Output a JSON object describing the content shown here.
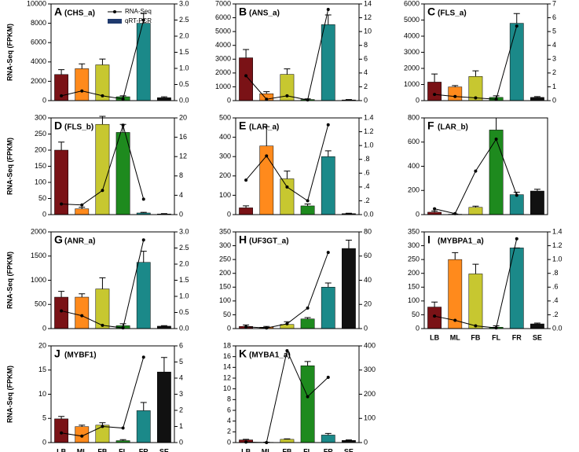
{
  "categories": [
    "LB",
    "ML",
    "FB",
    "FL",
    "FR",
    "SE"
  ],
  "bar_colors": [
    "#7a1216",
    "#ff8a1c",
    "#c7c730",
    "#1e8a1e",
    "#1b8989",
    "#111111"
  ],
  "line_color": "#000000",
  "ylabel": "RNA-Seq (FPKM)",
  "legend": {
    "line": "RNA-Seq",
    "bar": "qRT-PCR",
    "bar_color": "#1f3a6e"
  },
  "chart_data": [
    {
      "type": "bar_line",
      "panel": "A",
      "gene": "(CHS_a)",
      "ylim": [
        0,
        10000
      ],
      "yticks": [
        0,
        2000,
        4000,
        6000,
        8000,
        10000
      ],
      "y2lim": [
        0,
        3
      ],
      "y2ticks": [
        {
          "value": 0,
          "label": "0.0"
        },
        {
          "value": 0.5,
          "label": "0.5"
        },
        {
          "value": 1,
          "label": "1.0"
        },
        {
          "value": 1.5,
          "label": "1.5"
        },
        {
          "value": 2,
          "label": "2.0"
        },
        {
          "value": 2.5,
          "label": "2.5"
        },
        {
          "value": 3,
          "label": "3.0"
        }
      ],
      "values": [
        2700,
        3300,
        3700,
        400,
        8000,
        300
      ],
      "errors": [
        500,
        500,
        600,
        100,
        1000,
        100
      ],
      "line": [
        0.15,
        0.3,
        0.15,
        0.05,
        2.5,
        null
      ]
    },
    {
      "type": "bar_line",
      "panel": "B",
      "gene": "(ANS_a)",
      "ylim": [
        0,
        7000
      ],
      "yticks": [
        0,
        1000,
        2000,
        3000,
        4000,
        5000,
        6000,
        7000
      ],
      "y2lim": [
        0,
        14
      ],
      "y2ticks": [
        0,
        2,
        4,
        6,
        8,
        10,
        12,
        14
      ],
      "values": [
        3100,
        500,
        1900,
        80,
        5500,
        50
      ],
      "errors": [
        600,
        150,
        400,
        50,
        700,
        30
      ],
      "line": [
        3.6,
        0.2,
        0.7,
        0.1,
        13.2,
        null
      ]
    },
    {
      "type": "bar_line",
      "panel": "C",
      "gene": "(FLS_a)",
      "ylim": [
        0,
        6000
      ],
      "yticks": [
        0,
        1000,
        2000,
        3000,
        4000,
        5000,
        6000
      ],
      "y2lim": [
        0,
        7
      ],
      "y2ticks": [
        0,
        1,
        2,
        3,
        4,
        5,
        6,
        7
      ],
      "values": [
        1150,
        850,
        1500,
        200,
        4800,
        200
      ],
      "errors": [
        500,
        80,
        350,
        100,
        600,
        50
      ],
      "line": [
        0.45,
        0.3,
        0.2,
        0.1,
        5.4,
        null
      ]
    },
    {
      "type": "bar_line",
      "panel": "D",
      "gene": "(FLS_b)",
      "ylim": [
        0,
        300
      ],
      "yticks": [
        0,
        50,
        100,
        150,
        200,
        250,
        300
      ],
      "y2lim": [
        0,
        20
      ],
      "y2ticks": [
        0,
        4,
        8,
        12,
        16,
        20
      ],
      "values": [
        200,
        18,
        280,
        255,
        5,
        2
      ],
      "errors": [
        25,
        5,
        25,
        25,
        2,
        1
      ],
      "line": [
        2.2,
        2,
        5,
        18.5,
        3.2,
        null
      ]
    },
    {
      "type": "bar_line",
      "panel": "E",
      "gene": "(LAR_a)",
      "ylim": [
        0,
        500
      ],
      "yticks": [
        0,
        100,
        200,
        300,
        400,
        500
      ],
      "y2lim": [
        0,
        1.4
      ],
      "y2ticks": [
        {
          "value": 0,
          "label": "0.0"
        },
        {
          "value": 0.2,
          "label": ".2"
        },
        {
          "value": 0.4,
          "label": ".4"
        },
        {
          "value": 0.6,
          "label": ".6"
        },
        {
          "value": 0.8,
          "label": ".8"
        },
        {
          "value": 1,
          "label": "1.0"
        },
        {
          "value": 1.2,
          "label": "1.2"
        },
        {
          "value": 1.4,
          "label": "1.4"
        }
      ],
      "values": [
        35,
        355,
        185,
        45,
        300,
        5
      ],
      "errors": [
        10,
        100,
        40,
        10,
        30,
        2
      ],
      "line": [
        0.5,
        0.85,
        0.4,
        0.2,
        1.3,
        null
      ]
    },
    {
      "type": "bar_line",
      "panel": "F",
      "gene": "(LAR_b)",
      "ylim": [
        0,
        800
      ],
      "yticks": [
        0,
        200,
        400,
        600,
        800
      ],
      "y2lim": [
        0,
        1
      ],
      "y2ticks": [],
      "values": [
        20,
        3,
        60,
        700,
        165,
        195
      ],
      "errors": [
        10,
        2,
        10,
        100,
        20,
        15
      ],
      "line": [
        0.06,
        0.01,
        0.45,
        0.78,
        0.2,
        null
      ]
    },
    {
      "type": "bar_line",
      "panel": "G",
      "gene": "(ANR_a)",
      "ylim": [
        0,
        2000
      ],
      "yticks": [
        0,
        500,
        1000,
        1500,
        2000
      ],
      "y2lim": [
        0,
        3
      ],
      "y2ticks": [
        {
          "value": 0,
          "label": "0.0"
        },
        {
          "value": 0.5,
          "label": "0.5"
        },
        {
          "value": 1,
          "label": "1.0"
        },
        {
          "value": 1.5,
          "label": "1.5"
        },
        {
          "value": 2,
          "label": "2.0"
        },
        {
          "value": 2.5,
          "label": "2.5"
        },
        {
          "value": 3,
          "label": "3.0"
        }
      ],
      "values": [
        650,
        650,
        820,
        60,
        1370,
        50
      ],
      "errors": [
        120,
        70,
        230,
        40,
        230,
        10
      ],
      "line": [
        0.55,
        0.4,
        0.1,
        0.02,
        2.75,
        null
      ]
    },
    {
      "type": "bar_line",
      "panel": "H",
      "gene": "(UF3GT_a)",
      "ylim": [
        0,
        350
      ],
      "yticks": [
        0,
        50,
        100,
        150,
        200,
        250,
        300,
        350
      ],
      "y2lim": [
        0,
        80
      ],
      "y2ticks": [
        0,
        20,
        40,
        60,
        80
      ],
      "values": [
        8,
        5,
        15,
        35,
        150,
        290
      ],
      "errors": [
        5,
        3,
        10,
        5,
        15,
        30
      ],
      "line": [
        1.5,
        0.5,
        4,
        17,
        63,
        null
      ]
    },
    {
      "type": "bar_line",
      "panel": "I",
      "gene": "(MYBPA1_a)",
      "ylim": [
        0,
        350
      ],
      "yticks": [
        0,
        50,
        100,
        150,
        200,
        250,
        300,
        350
      ],
      "y2lim": [
        0,
        1.4
      ],
      "y2ticks": [
        {
          "value": 0,
          "label": "0.0"
        },
        {
          "value": 0.2,
          "label": ".2"
        },
        {
          "value": 0.4,
          "label": ".4"
        },
        {
          "value": 0.6,
          "label": ".6"
        },
        {
          "value": 0.8,
          "label": ".8"
        },
        {
          "value": 1,
          "label": "1.0"
        },
        {
          "value": 1.2,
          "label": "1.2"
        },
        {
          "value": 1.4,
          "label": "1.4"
        }
      ],
      "values": [
        78,
        250,
        198,
        5,
        292,
        17
      ],
      "errors": [
        18,
        25,
        35,
        5,
        0,
        3
      ],
      "line": [
        0.18,
        0.12,
        0.04,
        0.01,
        1.3,
        null
      ]
    },
    {
      "type": "bar_line",
      "panel": "J",
      "gene": "(MYBF1)",
      "ylim": [
        0,
        20
      ],
      "yticks": [
        0,
        5,
        10,
        15,
        20
      ],
      "y2lim": [
        0,
        6
      ],
      "y2ticks": [
        0,
        1,
        2,
        3,
        4,
        5,
        6
      ],
      "values": [
        4.9,
        3.3,
        3.6,
        0.4,
        6.6,
        14.6
      ],
      "errors": [
        0.5,
        0.3,
        0.5,
        0.2,
        1.7,
        3
      ],
      "line": [
        0.6,
        0.4,
        1,
        0.9,
        5.3,
        null
      ]
    },
    {
      "type": "bar_line",
      "panel": "K",
      "gene": "(MYBA1_a)",
      "ylim": [
        0,
        18
      ],
      "yticks": [
        0,
        2,
        4,
        6,
        8,
        10,
        12,
        14,
        16,
        18
      ],
      "y2lim": [
        0,
        400
      ],
      "y2ticks": [
        0,
        100,
        200,
        300,
        400
      ],
      "values": [
        0.5,
        0.05,
        0.6,
        14.3,
        1.4,
        0.4
      ],
      "errors": [
        0.1,
        0.02,
        0.1,
        0.8,
        0.3,
        0.1
      ],
      "line": [
        2,
        0,
        380,
        190,
        270,
        null
      ]
    }
  ]
}
